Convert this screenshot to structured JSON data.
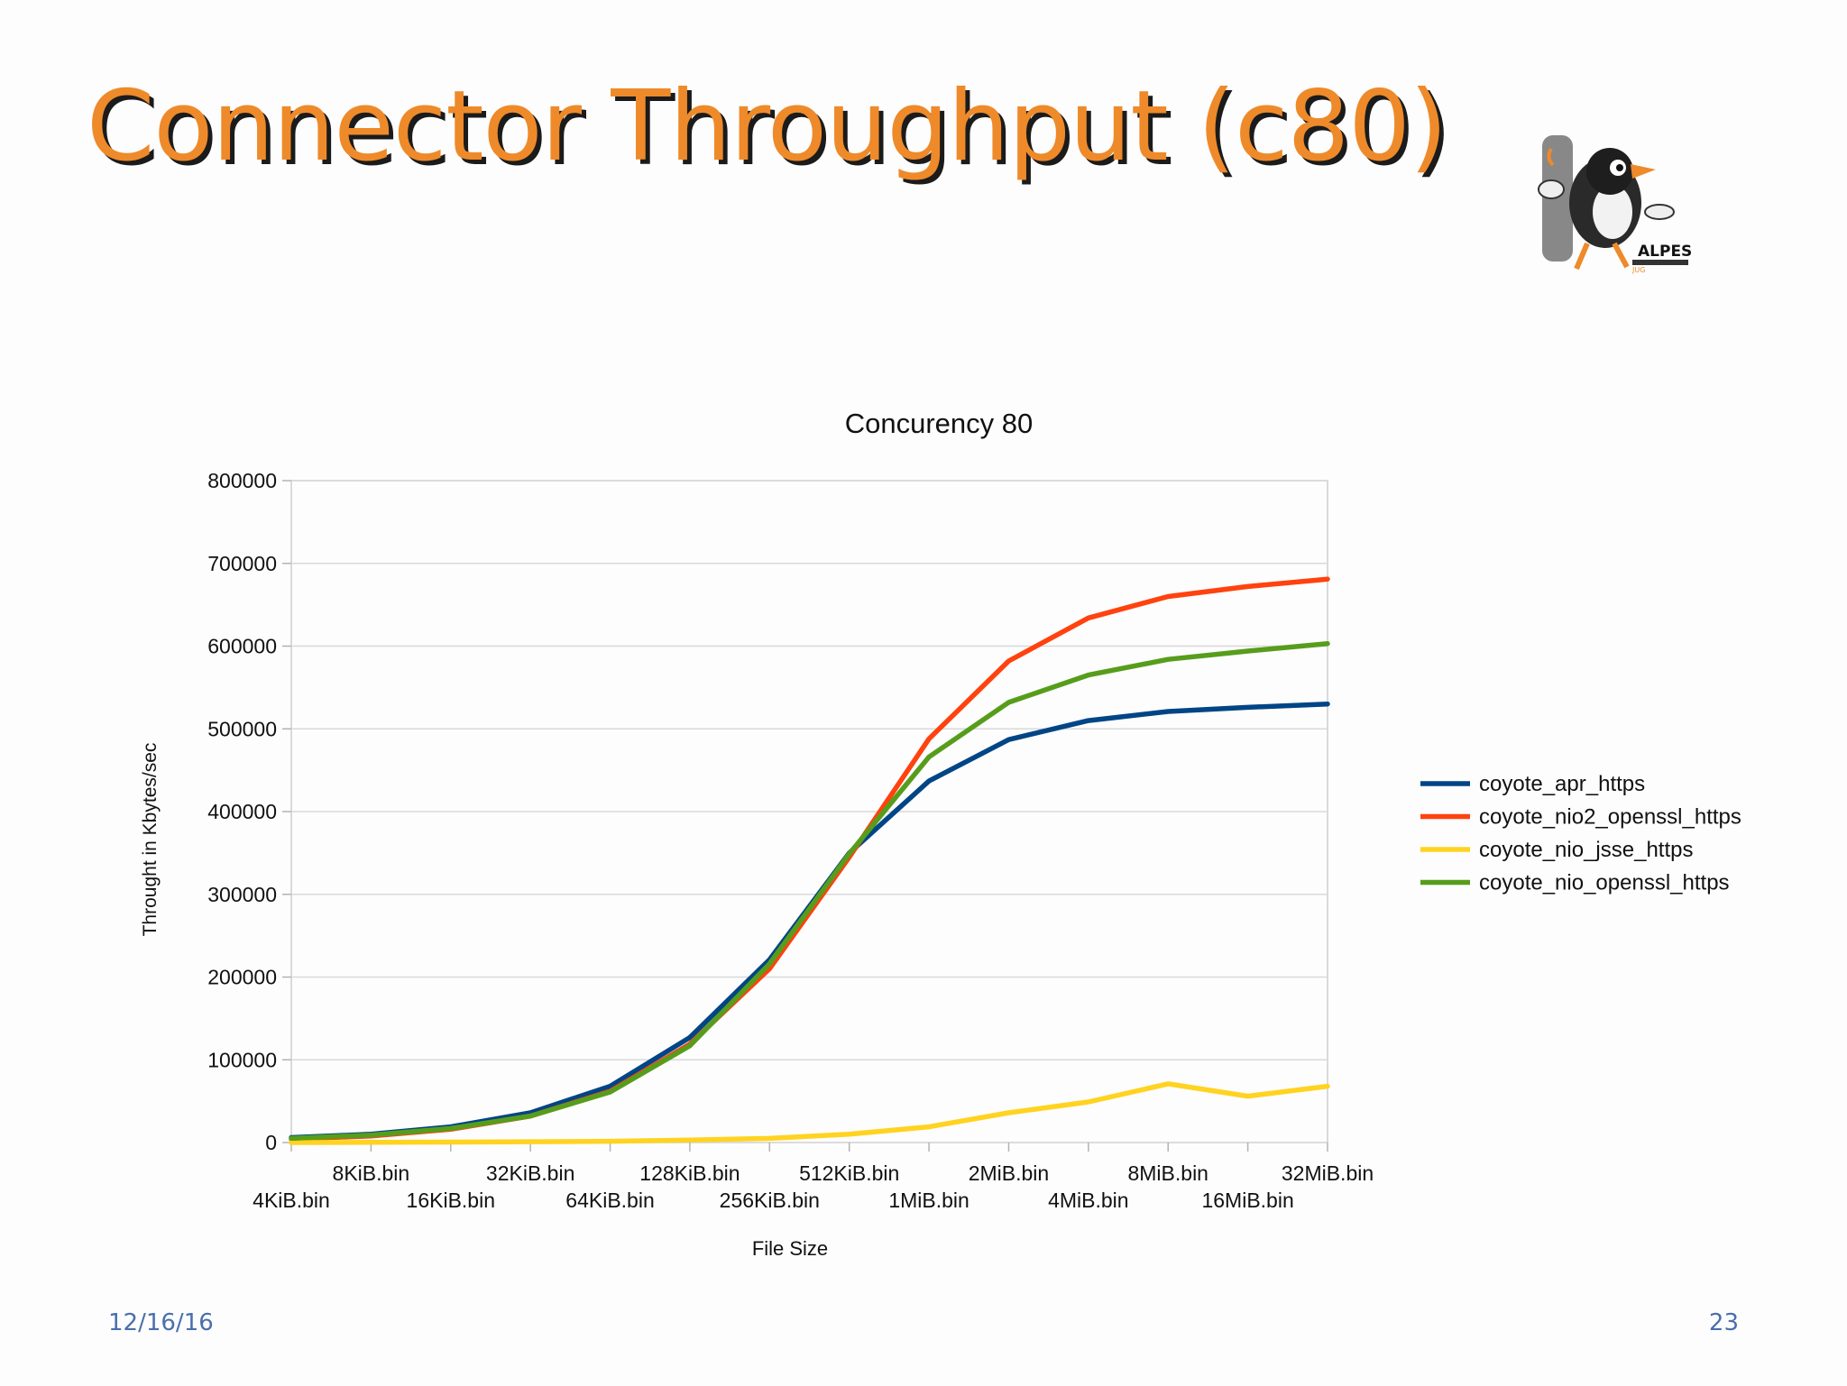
{
  "slide": {
    "title": "Connector Throughput (c80)",
    "logo_text": "ALPES",
    "logo_subtext": "JUG",
    "date": "12/16/16",
    "page_number": "23"
  },
  "colors": {
    "title": "#ee8a2a",
    "footer": "#4a6fae",
    "coyote_apr_https": "#004586",
    "coyote_nio2_openssl_https": "#ff420e",
    "coyote_nio_jsse_https": "#ffd320",
    "coyote_nio_openssl_https": "#579d1c"
  },
  "chart_data": {
    "type": "line",
    "title": "Concurency 80",
    "xlabel": "File Size",
    "ylabel": "Throught in Kbytes/sec",
    "ylim": [
      0,
      800000
    ],
    "yticks": [
      0,
      100000,
      200000,
      300000,
      400000,
      500000,
      600000,
      700000,
      800000
    ],
    "grid": true,
    "legend_position": "right",
    "categories": [
      "4KiB.bin",
      "8KiB.bin",
      "16KiB.bin",
      "32KiB.bin",
      "64KiB.bin",
      "128KiB.bin",
      "256KiB.bin",
      "512KiB.bin",
      "1MiB.bin",
      "2MiB.bin",
      "4MiB.bin",
      "8MiB.bin",
      "16MiB.bin",
      "32MiB.bin"
    ],
    "series": [
      {
        "name": "coyote_apr_https",
        "color": "#004586",
        "values": [
          6000,
          10000,
          19000,
          36000,
          68000,
          127000,
          221000,
          350000,
          437000,
          487000,
          510000,
          521000,
          526000,
          530000
        ]
      },
      {
        "name": "coyote_nio2_openssl_https",
        "color": "#ff420e",
        "values": [
          4000,
          8000,
          16000,
          32000,
          62000,
          119000,
          210000,
          345000,
          488000,
          582000,
          634000,
          660000,
          672000,
          681000
        ]
      },
      {
        "name": "coyote_nio_jsse_https",
        "color": "#ffd320",
        "values": [
          0,
          200,
          500,
          1000,
          1500,
          3000,
          5000,
          10000,
          19000,
          36000,
          49000,
          71000,
          56000,
          68000
        ]
      },
      {
        "name": "coyote_nio_openssl_https",
        "color": "#579d1c",
        "values": [
          5000,
          9000,
          17000,
          32000,
          61000,
          117000,
          216000,
          349000,
          466000,
          532000,
          565000,
          584000,
          594000,
          603000
        ]
      }
    ]
  }
}
